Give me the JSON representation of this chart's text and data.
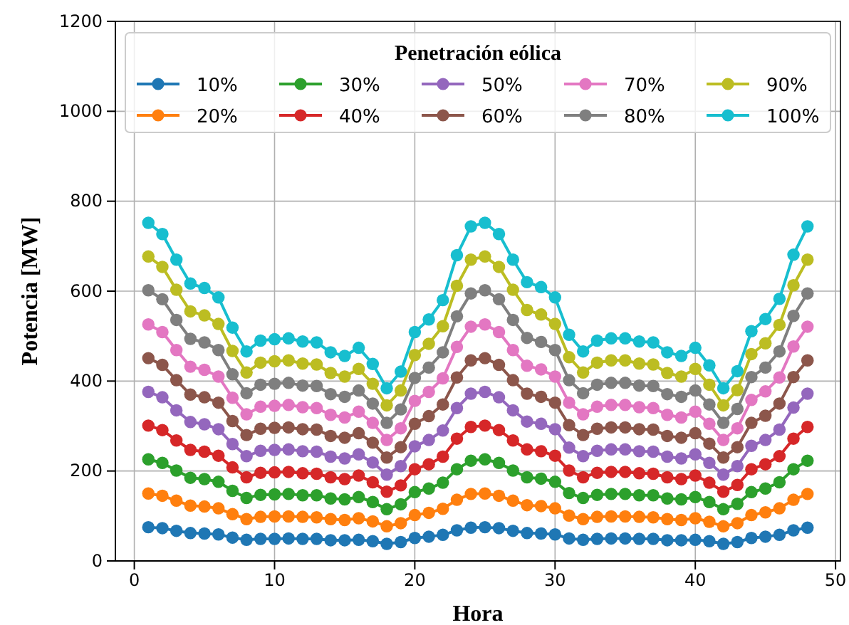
{
  "chart_data": {
    "type": "line",
    "xlabel": "Hora",
    "ylabel": "Potencia [MW]",
    "legend_title": "Penetración eólica",
    "legend": "top",
    "grid": true,
    "marker": "circle",
    "line_style": "solid",
    "x": [
      1,
      2,
      3,
      4,
      5,
      6,
      7,
      8,
      9,
      10,
      11,
      12,
      13,
      14,
      15,
      16,
      17,
      18,
      19,
      20,
      21,
      22,
      23,
      24,
      25,
      26,
      27,
      28,
      29,
      30,
      31,
      32,
      33,
      34,
      35,
      36,
      37,
      38,
      39,
      40,
      41,
      42,
      43,
      44,
      45,
      46,
      47,
      48
    ],
    "xlim": [
      -1.35,
      50.35
    ],
    "xticks": [
      0,
      10,
      20,
      30,
      40,
      50
    ],
    "ylim": [
      0,
      1200
    ],
    "yticks": [
      0,
      200,
      400,
      600,
      800,
      1000,
      1200
    ],
    "series": [
      {
        "name": "10%",
        "color": "#1f77b4",
        "values": [
          75,
          73,
          67,
          62,
          61,
          59,
          52,
          47,
          49,
          49,
          50,
          49,
          49,
          46,
          46,
          47,
          44,
          38,
          42,
          51,
          54,
          58,
          68,
          74,
          75,
          73,
          67,
          62,
          61,
          59,
          50,
          47,
          49,
          50,
          50,
          49,
          49,
          46,
          46,
          47,
          44,
          38,
          42,
          51,
          54,
          58,
          68,
          74
        ]
      },
      {
        "name": "20%",
        "color": "#ff7f0e",
        "values": [
          150,
          145,
          134,
          123,
          121,
          117,
          104,
          93,
          98,
          99,
          99,
          98,
          97,
          93,
          91,
          95,
          88,
          77,
          84,
          102,
          107,
          116,
          136,
          149,
          150,
          145,
          134,
          124,
          122,
          117,
          101,
          93,
          98,
          99,
          99,
          98,
          97,
          93,
          91,
          95,
          87,
          77,
          84,
          102,
          108,
          117,
          136,
          149
        ]
      },
      {
        "name": "30%",
        "color": "#2ca02c",
        "values": [
          226,
          218,
          201,
          185,
          182,
          176,
          156,
          140,
          147,
          148,
          149,
          146,
          146,
          139,
          137,
          142,
          131,
          115,
          126,
          153,
          161,
          174,
          204,
          223,
          226,
          218,
          201,
          186,
          183,
          176,
          151,
          140,
          147,
          149,
          149,
          146,
          146,
          139,
          137,
          142,
          131,
          115,
          127,
          153,
          161,
          175,
          204,
          223
        ]
      },
      {
        "name": "40%",
        "color": "#d62728",
        "values": [
          301,
          291,
          268,
          247,
          243,
          234,
          208,
          186,
          196,
          197,
          198,
          195,
          194,
          186,
          182,
          190,
          175,
          154,
          168,
          204,
          215,
          232,
          272,
          298,
          301,
          291,
          268,
          248,
          244,
          234,
          201,
          186,
          196,
          198,
          198,
          195,
          194,
          186,
          182,
          190,
          174,
          154,
          169,
          204,
          215,
          233,
          272,
          298
        ]
      },
      {
        "name": "50%",
        "color": "#9467bd",
        "values": [
          376,
          364,
          335,
          309,
          304,
          293,
          260,
          233,
          245,
          247,
          248,
          244,
          243,
          232,
          228,
          237,
          219,
          192,
          211,
          255,
          269,
          290,
          340,
          372,
          376,
          364,
          335,
          310,
          305,
          293,
          252,
          233,
          245,
          248,
          248,
          244,
          243,
          232,
          228,
          237,
          218,
          192,
          211,
          256,
          269,
          292,
          341,
          372
        ]
      },
      {
        "name": "60%",
        "color": "#8c564b",
        "values": [
          451,
          436,
          402,
          370,
          364,
          352,
          311,
          280,
          294,
          296,
          297,
          293,
          292,
          278,
          274,
          284,
          263,
          230,
          253,
          305,
          322,
          348,
          408,
          446,
          451,
          436,
          402,
          372,
          365,
          352,
          302,
          280,
          294,
          297,
          297,
          293,
          292,
          278,
          274,
          284,
          261,
          230,
          253,
          307,
          323,
          350,
          409,
          446
        ]
      },
      {
        "name": "70%",
        "color": "#e377c2",
        "values": [
          526,
          509,
          469,
          432,
          425,
          410,
          363,
          326,
          343,
          345,
          347,
          342,
          340,
          325,
          319,
          332,
          307,
          269,
          295,
          356,
          376,
          406,
          476,
          521,
          526,
          509,
          469,
          434,
          426,
          410,
          352,
          326,
          343,
          347,
          347,
          342,
          340,
          325,
          319,
          332,
          305,
          269,
          295,
          358,
          377,
          408,
          477,
          521
        ]
      },
      {
        "name": "80%",
        "color": "#7f7f7f",
        "values": [
          602,
          582,
          536,
          494,
          486,
          469,
          415,
          373,
          392,
          394,
          396,
          390,
          389,
          371,
          365,
          379,
          350,
          307,
          337,
          407,
          430,
          464,
          544,
          595,
          602,
          582,
          536,
          496,
          487,
          469,
          402,
          373,
          392,
          396,
          396,
          390,
          389,
          371,
          365,
          379,
          348,
          307,
          338,
          409,
          430,
          466,
          545,
          595
        ]
      },
      {
        "name": "90%",
        "color": "#bcbd22",
        "values": [
          677,
          654,
          603,
          555,
          546,
          527,
          467,
          419,
          441,
          444,
          446,
          439,
          437,
          418,
          410,
          427,
          394,
          346,
          379,
          458,
          483,
          522,
          612,
          670,
          677,
          654,
          603,
          558,
          548,
          527,
          453,
          419,
          441,
          446,
          446,
          439,
          437,
          418,
          410,
          427,
          392,
          346,
          380,
          460,
          484,
          525,
          613,
          670
        ]
      },
      {
        "name": "100%",
        "color": "#17becf",
        "values": [
          752,
          727,
          670,
          617,
          607,
          586,
          519,
          466,
          490,
          493,
          495,
          488,
          486,
          464,
          456,
          474,
          438,
          384,
          421,
          509,
          537,
          580,
          680,
          744,
          752,
          727,
          670,
          620,
          609,
          586,
          503,
          466,
          490,
          495,
          495,
          488,
          486,
          464,
          456,
          474,
          435,
          384,
          422,
          511,
          538,
          583,
          681,
          744
        ]
      }
    ]
  }
}
